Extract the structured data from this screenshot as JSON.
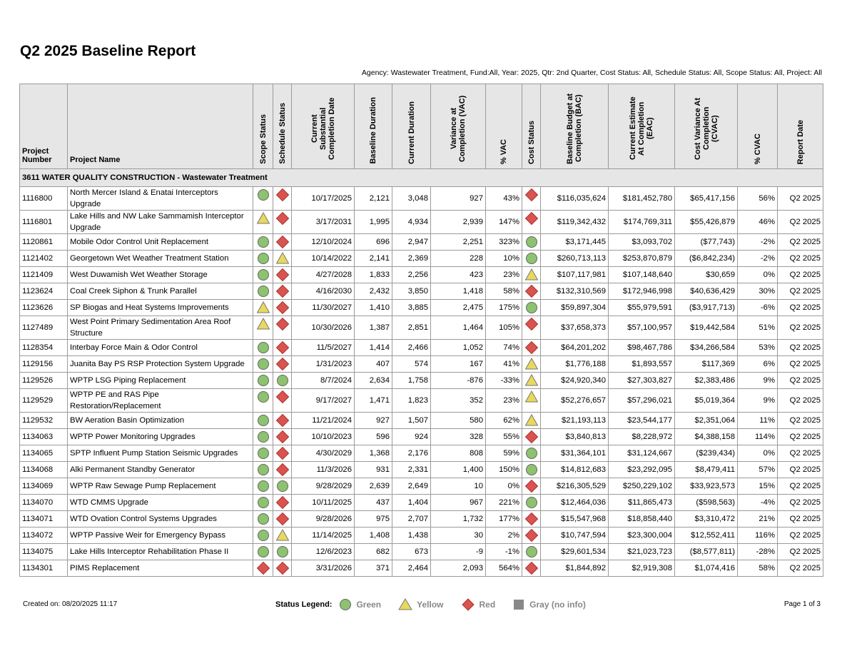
{
  "header": {
    "title": "Q2 2025 Baseline Report",
    "subtitle": "Agency: Wastewater Treatment, Fund:All, Year: 2025, Qtr: 2nd Quarter, Cost Status: All, Schedule Status: All, Scope Status: All, Project: All"
  },
  "table": {
    "headers": [
      "Project Number",
      "Project Name",
      "Scope Status",
      "Schedule Status",
      "Current Substantial Completion Date",
      "Baseline Duration",
      "Current Duration",
      "Variance at Completion (VAC)",
      "% VAC",
      "Cost Status",
      "Baseline Budget at Completion (BAC)",
      "Current Estimate At Completion (EAC)",
      "Cost Variance At Completion (CVAC)",
      "% CVAC",
      "Report Date"
    ],
    "group": "3611 WATER QUALITY CONSTRUCTION - Wastewater Treatment",
    "rows": [
      [
        "1116800",
        "North Mercer Island & Enatai Interceptors Upgrade",
        "Green",
        "Red",
        "10/17/2025",
        "2,121",
        "3,048",
        "927",
        "43%",
        "Red",
        "$116,035,624",
        "$181,452,780",
        "$65,417,156",
        "56%",
        "Q2 2025"
      ],
      [
        "1116801",
        "Lake Hills and NW Lake Sammamish Interceptor Upgrade",
        "Yellow",
        "Red",
        "3/17/2031",
        "1,995",
        "4,934",
        "2,939",
        "147%",
        "Red",
        "$119,342,432",
        "$174,769,311",
        "$55,426,879",
        "46%",
        "Q2 2025"
      ],
      [
        "1120861",
        "Mobile Odor Control Unit Replacement",
        "Green",
        "Red",
        "12/10/2024",
        "696",
        "2,947",
        "2,251",
        "323%",
        "Green",
        "$3,171,445",
        "$3,093,702",
        "($77,743)",
        "-2%",
        "Q2 2025"
      ],
      [
        "1121402",
        "Georgetown Wet Weather Treatment Station",
        "Green",
        "Yellow",
        "10/14/2022",
        "2,141",
        "2,369",
        "228",
        "10%",
        "Green",
        "$260,713,113",
        "$253,870,879",
        "($6,842,234)",
        "-2%",
        "Q2 2025"
      ],
      [
        "1121409",
        "West Duwamish Wet Weather Storage",
        "Green",
        "Red",
        "4/27/2028",
        "1,833",
        "2,256",
        "423",
        "23%",
        "Yellow",
        "$107,117,981",
        "$107,148,640",
        "$30,659",
        "0%",
        "Q2 2025"
      ],
      [
        "1123624",
        "Coal Creek Siphon & Trunk Parallel",
        "Green",
        "Red",
        "4/16/2030",
        "2,432",
        "3,850",
        "1,418",
        "58%",
        "Red",
        "$132,310,569",
        "$172,946,998",
        "$40,636,429",
        "30%",
        "Q2 2025"
      ],
      [
        "1123626",
        "SP Biogas and Heat Systems Improvements",
        "Yellow",
        "Red",
        "11/30/2027",
        "1,410",
        "3,885",
        "2,475",
        "175%",
        "Green",
        "$59,897,304",
        "$55,979,591",
        "($3,917,713)",
        "-6%",
        "Q2 2025"
      ],
      [
        "1127489",
        "West Point Primary Sedimentation Area Roof Structure",
        "Yellow",
        "Red",
        "10/30/2026",
        "1,387",
        "2,851",
        "1,464",
        "105%",
        "Red",
        "$37,658,373",
        "$57,100,957",
        "$19,442,584",
        "51%",
        "Q2 2025"
      ],
      [
        "1128354",
        "Interbay Force Main & Odor Control",
        "Green",
        "Red",
        "11/5/2027",
        "1,414",
        "2,466",
        "1,052",
        "74%",
        "Red",
        "$64,201,202",
        "$98,467,786",
        "$34,266,584",
        "53%",
        "Q2 2025"
      ],
      [
        "1129156",
        "Juanita Bay PS RSP Protection System Upgrade",
        "Green",
        "Red",
        "1/31/2023",
        "407",
        "574",
        "167",
        "41%",
        "Yellow",
        "$1,776,188",
        "$1,893,557",
        "$117,369",
        "6%",
        "Q2 2025"
      ],
      [
        "1129526",
        "WPTP LSG Piping Replacement",
        "Green",
        "Green",
        "8/7/2024",
        "2,634",
        "1,758",
        "-876",
        "-33%",
        "Yellow",
        "$24,920,340",
        "$27,303,827",
        "$2,383,486",
        "9%",
        "Q2 2025"
      ],
      [
        "1129529",
        "WPTP PE and RAS Pipe Restoration/Replacement",
        "Green",
        "Red",
        "9/17/2027",
        "1,471",
        "1,823",
        "352",
        "23%",
        "Yellow",
        "$52,276,657",
        "$57,296,021",
        "$5,019,364",
        "9%",
        "Q2 2025"
      ],
      [
        "1129532",
        "BW Aeration Basin Optimization",
        "Green",
        "Red",
        "11/21/2024",
        "927",
        "1,507",
        "580",
        "62%",
        "Yellow",
        "$21,193,113",
        "$23,544,177",
        "$2,351,064",
        "11%",
        "Q2 2025"
      ],
      [
        "1134063",
        "WPTP Power Monitoring Upgrades",
        "Green",
        "Red",
        "10/10/2023",
        "596",
        "924",
        "328",
        "55%",
        "Red",
        "$3,840,813",
        "$8,228,972",
        "$4,388,158",
        "114%",
        "Q2 2025"
      ],
      [
        "1134065",
        "SPTP Influent Pump Station Seismic Upgrades",
        "Green",
        "Red",
        "4/30/2029",
        "1,368",
        "2,176",
        "808",
        "59%",
        "Green",
        "$31,364,101",
        "$31,124,667",
        "($239,434)",
        "0%",
        "Q2 2025"
      ],
      [
        "1134068",
        "Alki Permanent Standby Generator",
        "Green",
        "Red",
        "11/3/2026",
        "931",
        "2,331",
        "1,400",
        "150%",
        "Green",
        "$14,812,683",
        "$23,292,095",
        "$8,479,411",
        "57%",
        "Q2 2025"
      ],
      [
        "1134069",
        "WPTP Raw Sewage Pump Replacement",
        "Green",
        "Green",
        "9/28/2029",
        "2,639",
        "2,649",
        "10",
        "0%",
        "Red",
        "$216,305,529",
        "$250,229,102",
        "$33,923,573",
        "15%",
        "Q2 2025"
      ],
      [
        "1134070",
        "WTD CMMS Upgrade",
        "Green",
        "Red",
        "10/11/2025",
        "437",
        "1,404",
        "967",
        "221%",
        "Green",
        "$12,464,036",
        "$11,865,473",
        "($598,563)",
        "-4%",
        "Q2 2025"
      ],
      [
        "1134071",
        "WTD Ovation Control Systems Upgrades",
        "Green",
        "Red",
        "9/28/2026",
        "975",
        "2,707",
        "1,732",
        "177%",
        "Red",
        "$15,547,968",
        "$18,858,440",
        "$3,310,472",
        "21%",
        "Q2 2025"
      ],
      [
        "1134072",
        "WPTP Passive Weir for Emergency Bypass",
        "Green",
        "Yellow",
        "11/14/2025",
        "1,408",
        "1,438",
        "30",
        "2%",
        "Red",
        "$10,747,594",
        "$23,300,004",
        "$12,552,411",
        "116%",
        "Q2 2025"
      ],
      [
        "1134075",
        "Lake Hills Interceptor Rehabilitation Phase II",
        "Green",
        "Green",
        "12/6/2023",
        "682",
        "673",
        "-9",
        "-1%",
        "Green",
        "$29,601,534",
        "$21,023,723",
        "($8,577,811)",
        "-28%",
        "Q2 2025"
      ],
      [
        "1134301",
        "PIMS Replacement",
        "Red",
        "Red",
        "3/31/2026",
        "371",
        "2,464",
        "2,093",
        "564%",
        "Red",
        "$1,844,892",
        "$2,919,308",
        "$1,074,416",
        "58%",
        "Q2 2025"
      ]
    ]
  },
  "footer": {
    "created": "Created on: 08/20/2025 11:17",
    "legend_title": "Status Legend:",
    "legend": [
      "Green",
      "Yellow",
      "Red",
      "Gray (no info)"
    ],
    "page": "Page 1 of 3"
  }
}
